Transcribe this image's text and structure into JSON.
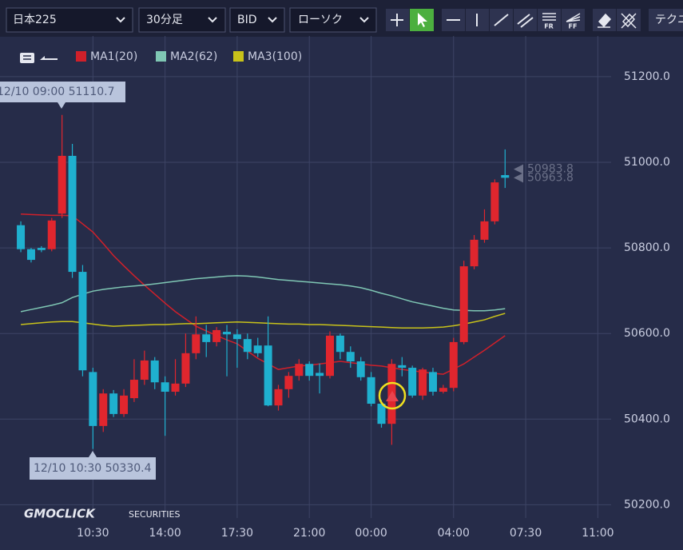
{
  "toolbar": {
    "symbol": "日本225",
    "timeframe": "30分足",
    "price_type": "BID",
    "chart_style": "ローソク",
    "tools": [
      "FR",
      "FF"
    ],
    "menu": "テクニ"
  },
  "chart_data": {
    "type": "candlestick",
    "xlim": [
      -2.02,
      57.29
    ],
    "xticks": [
      {
        "value": 7,
        "label": "10:30"
      },
      {
        "value": 14,
        "label": "14:00"
      },
      {
        "value": 21,
        "label": "17:30"
      },
      {
        "value": 28,
        "label": "21:00"
      },
      {
        "value": 34,
        "label": "00:00"
      },
      {
        "value": 42,
        "label": "04:00"
      },
      {
        "value": 49,
        "label": "07:30"
      },
      {
        "value": 56,
        "label": "11:00"
      }
    ],
    "ylim": [
      50169,
      51295
    ],
    "yticks": [
      {
        "value": 50200,
        "label": "50200.0"
      },
      {
        "value": 50400,
        "label": "50400.0"
      },
      {
        "value": 50600,
        "label": "50600.0"
      },
      {
        "value": 50800,
        "label": "50800.0"
      },
      {
        "value": 51000,
        "label": "51000.0"
      },
      {
        "value": 51200,
        "label": "51200.0"
      }
    ],
    "grid": true,
    "up_color": "#e0262e",
    "down_color": "#1fb0cf",
    "open": [
      50853,
      50797,
      50800,
      50797,
      50880,
      51015,
      50744,
      50510,
      50384,
      50460,
      50412,
      50449,
      50492,
      50537,
      50486,
      50464,
      50483,
      50554,
      50598,
      50580,
      50604,
      50598,
      50587,
      50572,
      50572,
      50432,
      50470,
      50501,
      50529,
      50508,
      50501,
      50595,
      50557,
      50535,
      50498,
      50436,
      50389,
      50526,
      50520,
      50455,
      50510,
      50464,
      50473,
      50580,
      50757,
      50819,
      50862,
      50970
    ],
    "high": [
      50862,
      50800,
      50804,
      50870,
      51110.7,
      51043,
      50760,
      50520,
      50470,
      50468,
      50470,
      50540,
      50560,
      50545,
      50500,
      50540,
      50600,
      50640,
      50620,
      50615,
      50620,
      50610,
      50600,
      50590,
      50640,
      50480,
      50510,
      50540,
      50535,
      50530,
      50605,
      50600,
      50570,
      50545,
      50510,
      50445,
      50540,
      50545,
      50525,
      50520,
      50520,
      50480,
      50590,
      50770,
      50830,
      50890,
      50960,
      51030
    ],
    "low": [
      50790,
      50766,
      50790,
      50792,
      50870,
      50730,
      50500,
      50330.4,
      50370,
      50405,
      50405,
      50440,
      50480,
      50470,
      50361,
      50455,
      50475,
      50540,
      50545,
      50570,
      50500,
      50520,
      50540,
      50545,
      50430,
      50420,
      50450,
      50490,
      50490,
      50460,
      50495,
      50540,
      50520,
      50490,
      50430,
      50380,
      50340,
      50500,
      50450,
      50445,
      50455,
      50460,
      50465,
      50575,
      50750,
      50812,
      50855,
      50940
    ],
    "close": [
      50797,
      50772,
      50795,
      50864,
      51015,
      50744,
      50514,
      50384,
      50460,
      50412,
      50455,
      50492,
      50537,
      50486,
      50464,
      50483,
      50554,
      50598,
      50580,
      50608,
      50598,
      50587,
      50557,
      50554,
      50432,
      50470,
      50501,
      50529,
      50501,
      50501,
      50595,
      50557,
      50535,
      50498,
      50436,
      50389,
      50529,
      50520,
      50455,
      50516,
      50464,
      50473,
      50580,
      50757,
      50819,
      50862,
      50953,
      50963.8
    ],
    "series": [
      {
        "name": "MA1(20)",
        "color": "#d0202a",
        "values": [
          50879,
          50878,
          50877,
          50876,
          50876,
          50875,
          50856,
          50837,
          50810,
          50782,
          50758,
          50735,
          50713,
          50692,
          50671,
          50651,
          50634,
          50617,
          50606,
          50595,
          50585,
          50576,
          50559,
          50542,
          50529,
          50516,
          50520,
          50524,
          50526,
          50529,
          50532,
          50535,
          50532,
          50529,
          50526,
          50524,
          50520,
          50516,
          50513,
          50510,
          50507,
          50505,
          50517,
          50529,
          50545,
          50561,
          50578,
          50595
        ]
      },
      {
        "name": "MA2(62)",
        "color": "#7fc7b4",
        "values": [
          50651,
          50656,
          50661,
          50666,
          50672,
          50684,
          50692,
          50699,
          50703,
          50706,
          50709,
          50711,
          50713,
          50716,
          50719,
          50722,
          50725,
          50728,
          50730,
          50732,
          50734,
          50735,
          50734,
          50732,
          50729,
          50726,
          50724,
          50722,
          50720,
          50718,
          50716,
          50714,
          50711,
          50707,
          50701,
          50694,
          50688,
          50681,
          50674,
          50669,
          50664,
          50659,
          50655,
          50654,
          50653,
          50653,
          50655,
          50658
        ]
      },
      {
        "name": "MA3(100)",
        "color": "#c8c21a",
        "values": [
          50621,
          50623,
          50625,
          50627,
          50628,
          50628,
          50625,
          50622,
          50619,
          50617,
          50618,
          50619,
          50620,
          50621,
          50621,
          50622,
          50623,
          50623,
          50624,
          50625,
          50626,
          50627,
          50626,
          50625,
          50624,
          50623,
          50622,
          50622,
          50621,
          50621,
          50620,
          50619,
          50618,
          50617,
          50616,
          50615,
          50614,
          50613,
          50613,
          50613,
          50614,
          50615,
          50618,
          50622,
          50627,
          50632,
          50640,
          50647
        ]
      }
    ],
    "price_markers": [
      50983.8,
      50963.8
    ],
    "annotations": {
      "high": "12/10 09:00 51110.7",
      "low": "12/10 10:30 50330.4"
    },
    "logo": {
      "brand": "GMOCLICK",
      "sub": "SECURITIES"
    }
  }
}
